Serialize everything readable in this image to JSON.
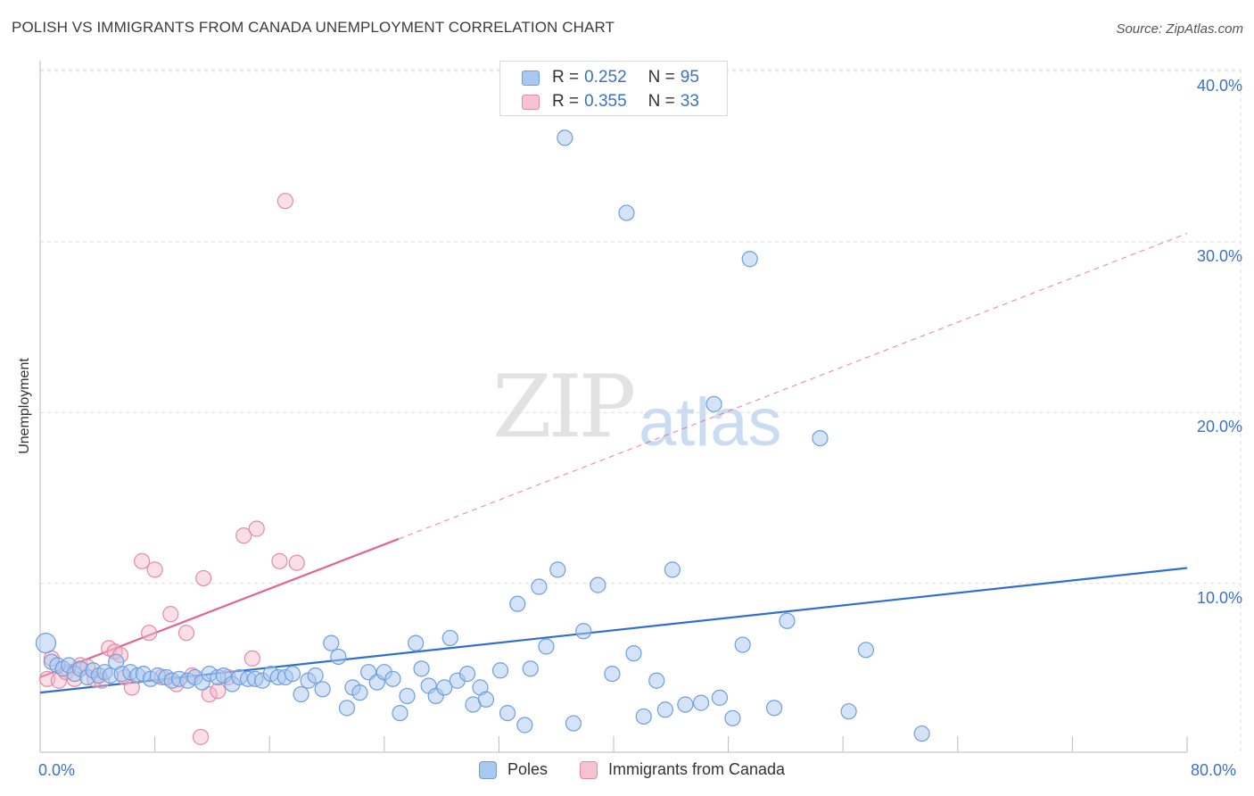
{
  "title": "POLISH VS IMMIGRANTS FROM CANADA UNEMPLOYMENT CORRELATION CHART",
  "source": "Source: ZipAtlas.com",
  "watermark": {
    "part1": "ZIP",
    "part2": "atlas"
  },
  "colors": {
    "poles_fill": "#a9c8f0",
    "poles_stroke": "#6e9fdc",
    "poles_line": "#2f6fd0",
    "canada_fill": "#f7b8c9",
    "canada_stroke": "#e58aa6",
    "canada_line": "#e06690",
    "tick_text": "#3a72c8",
    "grid": "#dddddd"
  },
  "legend_top": {
    "rows": [
      {
        "r_label": "R =",
        "r_value": "0.252",
        "n_label": "N =",
        "n_value": "95"
      },
      {
        "r_label": "R =",
        "r_value": "0.355",
        "n_label": "N =",
        "n_value": "33"
      }
    ]
  },
  "legend_bottom": {
    "poles": "Poles",
    "canada": "Immigrants from Canada"
  },
  "chart_data": {
    "type": "scatter",
    "title": "POLISH VS IMMIGRANTS FROM CANADA UNEMPLOYMENT CORRELATION CHART",
    "xlabel": "",
    "ylabel": "Unemployment",
    "xlim": [
      0,
      80
    ],
    "ylim": [
      0,
      42
    ],
    "x_tick_labels": [
      "0.0%",
      "80.0%"
    ],
    "y_ticks": [
      10,
      20,
      30,
      40
    ],
    "y_tick_labels": [
      "10.0%",
      "20.0%",
      "30.0%",
      "40.0%"
    ],
    "grid": true,
    "legend_position": "top-center",
    "series": [
      {
        "name": "Poles",
        "r": 0.252,
        "n": 95,
        "trend": {
          "x": [
            0,
            80
          ],
          "y": [
            3.6,
            10.9
          ]
        },
        "points": [
          [
            0.4,
            6.5
          ],
          [
            0.8,
            5.4
          ],
          [
            1.2,
            5.2
          ],
          [
            1.6,
            5.0
          ],
          [
            2.0,
            5.2
          ],
          [
            2.4,
            4.7
          ],
          [
            2.8,
            5.0
          ],
          [
            3.3,
            4.5
          ],
          [
            3.7,
            4.9
          ],
          [
            4.1,
            4.6
          ],
          [
            4.5,
            4.8
          ],
          [
            4.9,
            4.6
          ],
          [
            5.3,
            5.4
          ],
          [
            5.7,
            4.7
          ],
          [
            6.3,
            4.8
          ],
          [
            6.8,
            4.6
          ],
          [
            7.2,
            4.7
          ],
          [
            7.7,
            4.4
          ],
          [
            8.2,
            4.6
          ],
          [
            8.8,
            4.5
          ],
          [
            9.2,
            4.3
          ],
          [
            9.7,
            4.4
          ],
          [
            10.3,
            4.3
          ],
          [
            10.8,
            4.5
          ],
          [
            11.3,
            4.2
          ],
          [
            11.8,
            4.7
          ],
          [
            12.4,
            4.5
          ],
          [
            12.8,
            4.6
          ],
          [
            13.4,
            4.1
          ],
          [
            13.9,
            4.5
          ],
          [
            14.5,
            4.4
          ],
          [
            15.0,
            4.4
          ],
          [
            15.5,
            4.3
          ],
          [
            16.1,
            4.7
          ],
          [
            16.6,
            4.5
          ],
          [
            17.1,
            4.5
          ],
          [
            17.6,
            4.7
          ],
          [
            18.2,
            3.5
          ],
          [
            18.7,
            4.3
          ],
          [
            19.2,
            4.6
          ],
          [
            19.7,
            3.8
          ],
          [
            20.3,
            6.5
          ],
          [
            20.8,
            5.7
          ],
          [
            21.4,
            2.7
          ],
          [
            21.8,
            3.9
          ],
          [
            22.3,
            3.6
          ],
          [
            22.9,
            4.8
          ],
          [
            23.5,
            4.2
          ],
          [
            24.0,
            4.8
          ],
          [
            24.6,
            4.4
          ],
          [
            25.1,
            2.4
          ],
          [
            25.6,
            3.4
          ],
          [
            26.2,
            6.5
          ],
          [
            26.6,
            5.0
          ],
          [
            27.1,
            4.0
          ],
          [
            27.6,
            3.4
          ],
          [
            28.2,
            3.9
          ],
          [
            28.6,
            6.8
          ],
          [
            29.1,
            4.3
          ],
          [
            29.8,
            4.7
          ],
          [
            30.2,
            2.9
          ],
          [
            30.7,
            3.9
          ],
          [
            31.1,
            3.2
          ],
          [
            32.1,
            4.9
          ],
          [
            32.6,
            2.4
          ],
          [
            33.3,
            8.8
          ],
          [
            33.8,
            1.7
          ],
          [
            34.2,
            5.0
          ],
          [
            34.8,
            9.8
          ],
          [
            35.3,
            6.3
          ],
          [
            36.1,
            10.8
          ],
          [
            36.6,
            36.1
          ],
          [
            37.2,
            1.8
          ],
          [
            37.9,
            7.2
          ],
          [
            38.9,
            9.9
          ],
          [
            39.9,
            4.7
          ],
          [
            40.9,
            31.7
          ],
          [
            41.4,
            5.9
          ],
          [
            42.1,
            2.2
          ],
          [
            43.0,
            4.3
          ],
          [
            43.6,
            2.6
          ],
          [
            44.1,
            10.8
          ],
          [
            45.0,
            2.9
          ],
          [
            46.1,
            3.0
          ],
          [
            47.0,
            20.5
          ],
          [
            47.4,
            3.3
          ],
          [
            48.3,
            2.1
          ],
          [
            49.0,
            6.4
          ],
          [
            49.5,
            29.0
          ],
          [
            51.2,
            2.7
          ],
          [
            52.1,
            7.8
          ],
          [
            54.4,
            18.5
          ],
          [
            56.4,
            2.5
          ],
          [
            57.6,
            6.1
          ],
          [
            61.5,
            1.2
          ]
        ]
      },
      {
        "name": "Immigrants from Canada",
        "r": 0.355,
        "n": 33,
        "trend": {
          "x": [
            0,
            25
          ],
          "y": [
            4.5,
            12.6
          ]
        },
        "trend_extended": {
          "x": [
            25,
            80
          ],
          "y": [
            12.6,
            30.5
          ]
        },
        "points": [
          [
            0.5,
            4.4
          ],
          [
            0.8,
            5.6
          ],
          [
            1.3,
            4.3
          ],
          [
            1.8,
            4.8
          ],
          [
            2.4,
            4.4
          ],
          [
            2.8,
            5.2
          ],
          [
            3.3,
            5.1
          ],
          [
            3.8,
            4.4
          ],
          [
            4.3,
            4.3
          ],
          [
            4.8,
            6.2
          ],
          [
            5.2,
            6.0
          ],
          [
            5.6,
            5.8
          ],
          [
            5.9,
            4.5
          ],
          [
            6.4,
            3.9
          ],
          [
            7.1,
            11.3
          ],
          [
            7.6,
            7.1
          ],
          [
            8.0,
            10.8
          ],
          [
            8.5,
            4.5
          ],
          [
            9.1,
            8.2
          ],
          [
            9.5,
            4.1
          ],
          [
            10.2,
            7.1
          ],
          [
            10.6,
            4.6
          ],
          [
            11.2,
            1.0
          ],
          [
            11.4,
            10.3
          ],
          [
            11.8,
            3.5
          ],
          [
            12.4,
            3.7
          ],
          [
            13.1,
            4.5
          ],
          [
            14.2,
            12.8
          ],
          [
            14.8,
            5.6
          ],
          [
            15.1,
            13.2
          ],
          [
            16.7,
            11.3
          ],
          [
            17.1,
            32.4
          ],
          [
            17.9,
            11.2
          ]
        ]
      }
    ]
  }
}
